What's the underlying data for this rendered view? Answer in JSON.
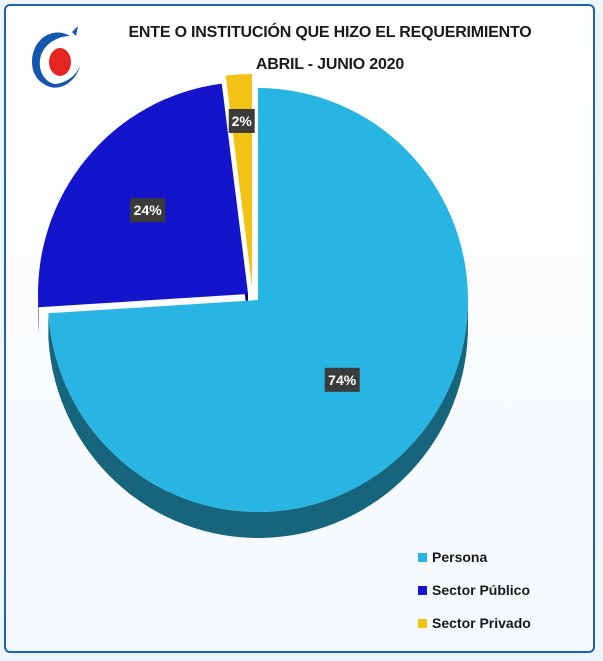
{
  "chart_data": {
    "type": "pie",
    "title": "ENTE O INSTITUCIÓN QUE HIZO EL REQUERIMIENTO",
    "subtitle": "ABRIL - JUNIO 2020",
    "categories": [
      "Persona",
      "Sector Público",
      "Sector Privado"
    ],
    "values": [
      74,
      24,
      2
    ],
    "value_labels": [
      "74%",
      "24%",
      "2%"
    ],
    "colors": [
      "#29b5e4",
      "#1414cc",
      "#f2c314"
    ],
    "style": "3d-exploded",
    "legend_position": "bottom-right"
  },
  "logo": {
    "icon": "institution-logo-icon"
  }
}
